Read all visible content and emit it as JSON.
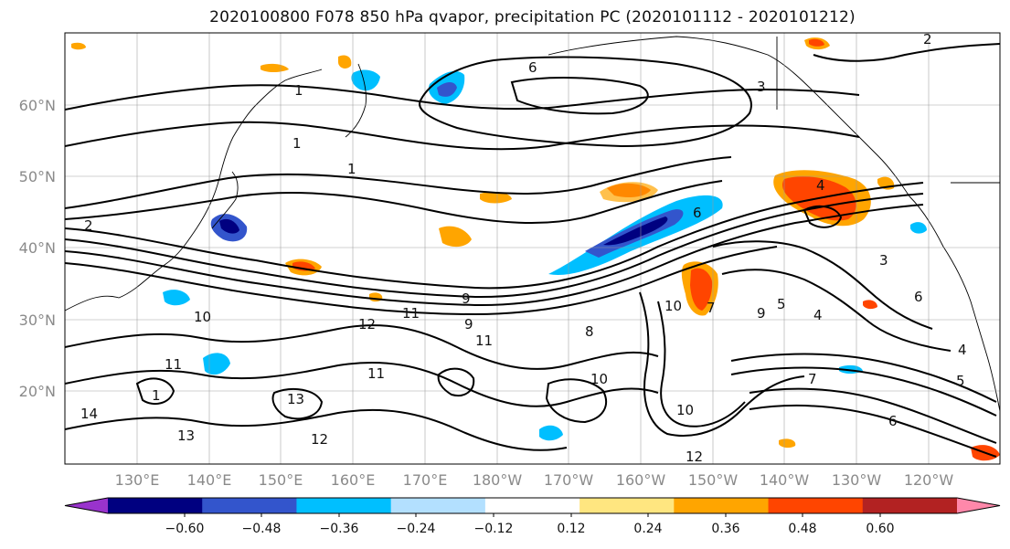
{
  "title": "2020100800 F078 850 hPa qvapor, precipitation PC (2020101112 - 2020101212)",
  "lat_labels": [
    "60°N",
    "50°N",
    "40°N",
    "30°N",
    "20°N"
  ],
  "lon_labels": [
    "130°E",
    "140°E",
    "150°E",
    "160°E",
    "170°E",
    "180°W",
    "170°W",
    "160°W",
    "150°W",
    "140°W",
    "130°W",
    "120°W"
  ],
  "colorbar": {
    "ticks": [
      "−0.60",
      "−0.48",
      "−0.36",
      "−0.24",
      "−0.12",
      "0.12",
      "0.24",
      "0.36",
      "0.48",
      "0.60"
    ],
    "colors": [
      "#9933cc",
      "#000080",
      "#3355cc",
      "#00bfff",
      "#b3e0ff",
      "#ffffff",
      "#ffe680",
      "#ffa500",
      "#ff4500",
      "#b22222",
      "#ff88aa"
    ]
  },
  "contour_labels": [
    "1",
    "1",
    "1",
    "3",
    "2",
    "4",
    "6",
    "6",
    "7",
    "9",
    "10",
    "11",
    "12",
    "11",
    "13",
    "12",
    "13",
    "11",
    "10",
    "10",
    "8",
    "9",
    "9",
    "7",
    "5",
    "4",
    "6",
    "5",
    "4",
    "3",
    "6",
    "2",
    "12",
    "10",
    "14",
    "11",
    "1"
  ]
}
